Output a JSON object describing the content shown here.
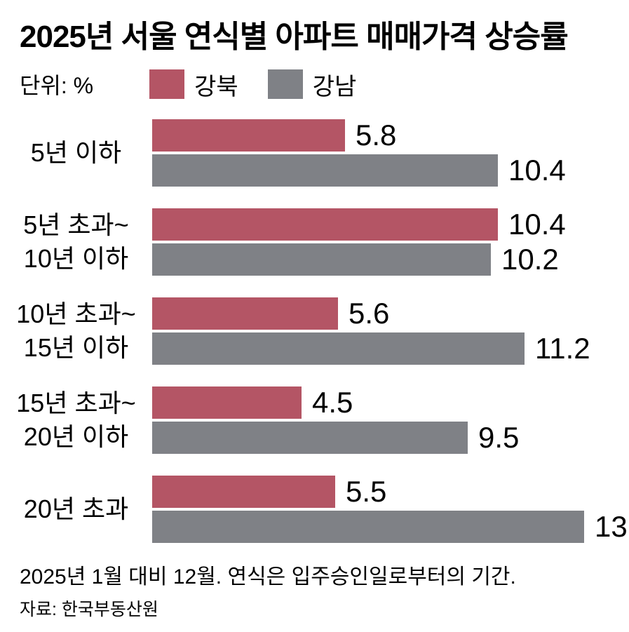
{
  "title": "2025년 서울 연식별 아파트 매매가격 상승률",
  "unit_label": "단위: %",
  "footnote": "2025년 1월 대비 12월. 연식은 입주승인일로부터의 기간.",
  "source": "자료: 한국부동산원",
  "colors": {
    "gangbuk": "#b45565",
    "gangnam": "#7f8186",
    "text": "#000000",
    "background": "#ffffff"
  },
  "chart_data": {
    "type": "bar",
    "orientation": "horizontal",
    "title": "2025년 서울 연식별 아파트 매매가격 상승률",
    "unit": "%",
    "xlim": [
      0,
      13
    ],
    "grid": false,
    "legend_position": "top",
    "categories": [
      "5년 이하",
      "5년 초과~10년 이하",
      "10년 초과~15년 이하",
      "15년 초과~20년 이하",
      "20년 초과"
    ],
    "category_lines": [
      [
        "5년 이하"
      ],
      [
        "5년 초과~",
        "10년 이하"
      ],
      [
        "10년 초과~",
        "15년 이하"
      ],
      [
        "15년 초과~",
        "20년 이하"
      ],
      [
        "20년 초과"
      ]
    ],
    "series": [
      {
        "name": "강북",
        "color": "#b45565",
        "values": [
          5.8,
          10.4,
          5.6,
          4.5,
          5.5
        ]
      },
      {
        "name": "강남",
        "color": "#7f8186",
        "values": [
          10.4,
          10.2,
          11.2,
          9.5,
          13
        ]
      }
    ]
  }
}
